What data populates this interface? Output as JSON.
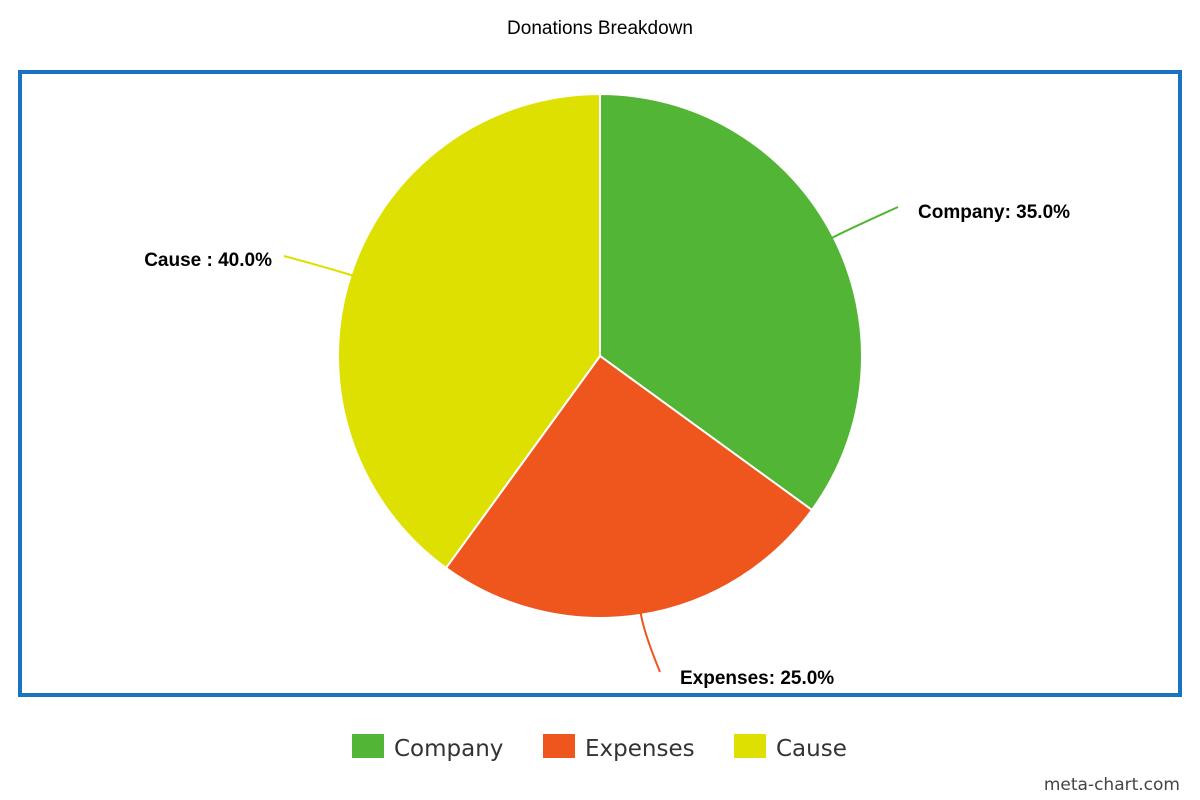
{
  "chart_data": {
    "type": "pie",
    "title": "Donations Breakdown",
    "slices": [
      {
        "label": "Company",
        "value": 35.0,
        "display": "Company: 35.0%",
        "color": "#52b535"
      },
      {
        "label": "Expenses",
        "value": 25.0,
        "display": "Expenses: 25.0%",
        "color": "#ee561e"
      },
      {
        "label": "Cause",
        "value": 40.0,
        "display": "Cause : 40.0%",
        "color": "#dde000"
      }
    ],
    "start_angle_deg": 0,
    "direction": "clockwise",
    "legend": {
      "placement": "bottom",
      "items": [
        "Company",
        "Expenses",
        "Cause"
      ]
    },
    "frame_color": "#1a73be"
  },
  "credit": "meta-chart.com"
}
